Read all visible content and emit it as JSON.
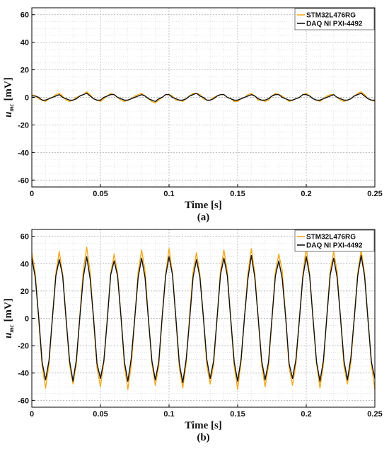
{
  "chart_data": [
    {
      "type": "line",
      "caption": "(a)",
      "xlabel": "Time [s]",
      "ylabel": "u",
      "ylabel_subscript": "mc",
      "ylabel_unit": "[mV]",
      "xlim": [
        0,
        0.25
      ],
      "ylim": [
        -65,
        65
      ],
      "xticks": [
        0,
        0.05,
        0.1,
        0.15,
        0.2,
        0.25
      ],
      "yticks": [
        -60,
        -40,
        -20,
        0,
        20,
        40,
        60
      ],
      "grid": true,
      "legend": "upper right",
      "x": [
        0,
        0.0025,
        0.005,
        0.0075,
        0.01,
        0.0125,
        0.015,
        0.0175,
        0.02,
        0.0225,
        0.025,
        0.0275,
        0.03,
        0.0325,
        0.035,
        0.0375,
        0.04,
        0.0425,
        0.045,
        0.0475,
        0.05,
        0.0525,
        0.055,
        0.0575,
        0.06,
        0.0625,
        0.065,
        0.0675,
        0.07,
        0.0725,
        0.075,
        0.0775,
        0.08,
        0.0825,
        0.085,
        0.0875,
        0.09,
        0.0925,
        0.095,
        0.0975,
        0.1,
        0.1025,
        0.105,
        0.1075,
        0.11,
        0.1125,
        0.115,
        0.1175,
        0.12,
        0.1225,
        0.125,
        0.1275,
        0.13,
        0.1325,
        0.135,
        0.1375,
        0.14,
        0.1425,
        0.145,
        0.1475,
        0.15,
        0.1525,
        0.155,
        0.1575,
        0.16,
        0.1625,
        0.165,
        0.1675,
        0.17,
        0.1725,
        0.175,
        0.1775,
        0.18,
        0.1825,
        0.185,
        0.1875,
        0.19,
        0.1925,
        0.195,
        0.1975,
        0.2,
        0.2025,
        0.205,
        0.2075,
        0.21,
        0.2125,
        0.215,
        0.2175,
        0.22,
        0.2225,
        0.225,
        0.2275,
        0.23,
        0.2325,
        0.235,
        0.2375,
        0.24,
        0.2425,
        0.245,
        0.2475,
        0.25
      ],
      "series": [
        {
          "name": "STM32L476RG",
          "color": "#f2a81d",
          "values": [
            2,
            1,
            -1,
            -2,
            -3,
            -1,
            0,
            2,
            3,
            1,
            -2,
            -3,
            -2,
            0,
            1,
            2,
            4,
            2,
            -1,
            -2,
            -3,
            -1,
            1,
            3,
            2,
            0,
            -2,
            -3,
            -2,
            -1,
            1,
            2,
            3,
            1,
            -1,
            -3,
            -4,
            -2,
            0,
            2,
            2,
            1,
            -2,
            -2,
            -3,
            -1,
            1,
            3,
            3,
            2,
            -1,
            -2,
            -2,
            0,
            1,
            2,
            2,
            0,
            -1,
            -3,
            -3,
            -1,
            0,
            2,
            3,
            1,
            -2,
            -2,
            -3,
            -2,
            1,
            3,
            2,
            1,
            -1,
            -3,
            -2,
            -1,
            0,
            2,
            3,
            1,
            -1,
            -2,
            -3,
            -1,
            1,
            2,
            2,
            0,
            -2,
            -3,
            -2,
            -1,
            1,
            3,
            4,
            2,
            -1,
            -2,
            -3
          ]
        },
        {
          "name": "DAQ NI PXI-4492",
          "color": "#111111",
          "values": [
            1,
            1,
            0,
            -2,
            -2,
            -1,
            0,
            1,
            2,
            0,
            -1,
            -2,
            -2,
            -1,
            1,
            2,
            3,
            1,
            -1,
            -2,
            -2,
            0,
            1,
            2,
            2,
            0,
            -1,
            -2,
            -2,
            -1,
            0,
            1,
            2,
            1,
            -1,
            -2,
            -3,
            -1,
            0,
            2,
            2,
            0,
            -1,
            -2,
            -2,
            -1,
            1,
            2,
            3,
            1,
            0,
            -2,
            -2,
            -1,
            1,
            2,
            2,
            0,
            -1,
            -2,
            -2,
            -1,
            0,
            1,
            2,
            1,
            -1,
            -2,
            -2,
            -1,
            1,
            2,
            2,
            0,
            -1,
            -2,
            -2,
            -1,
            0,
            2,
            2,
            1,
            -1,
            -2,
            -2,
            -1,
            0,
            1,
            2,
            0,
            -1,
            -2,
            -2,
            -1,
            1,
            2,
            3,
            1,
            -1,
            -2,
            -2
          ]
        }
      ]
    },
    {
      "type": "line",
      "caption": "(b)",
      "xlabel": "Time [s]",
      "ylabel": "u",
      "ylabel_subscript": "mc",
      "ylabel_unit": "[mV]",
      "xlim": [
        0,
        0.25
      ],
      "ylim": [
        -65,
        65
      ],
      "xticks": [
        0,
        0.05,
        0.1,
        0.15,
        0.2,
        0.25
      ],
      "yticks": [
        -60,
        -40,
        -20,
        0,
        20,
        40,
        60
      ],
      "grid": true,
      "legend": "upper right",
      "x": [
        0,
        0.0025,
        0.005,
        0.0075,
        0.01,
        0.0125,
        0.015,
        0.0175,
        0.02,
        0.0225,
        0.025,
        0.0275,
        0.03,
        0.0325,
        0.035,
        0.0375,
        0.04,
        0.0425,
        0.045,
        0.0475,
        0.05,
        0.0525,
        0.055,
        0.0575,
        0.06,
        0.0625,
        0.065,
        0.0675,
        0.07,
        0.0725,
        0.075,
        0.0775,
        0.08,
        0.0825,
        0.085,
        0.0875,
        0.09,
        0.0925,
        0.095,
        0.0975,
        0.1,
        0.1025,
        0.105,
        0.1075,
        0.11,
        0.1125,
        0.115,
        0.1175,
        0.12,
        0.1225,
        0.125,
        0.1275,
        0.13,
        0.1325,
        0.135,
        0.1375,
        0.14,
        0.1425,
        0.145,
        0.1475,
        0.15,
        0.1525,
        0.155,
        0.1575,
        0.16,
        0.1625,
        0.165,
        0.1675,
        0.17,
        0.1725,
        0.175,
        0.1775,
        0.18,
        0.1825,
        0.185,
        0.1875,
        0.19,
        0.1925,
        0.195,
        0.1975,
        0.2,
        0.2025,
        0.205,
        0.2075,
        0.21,
        0.2125,
        0.215,
        0.2175,
        0.22,
        0.2225,
        0.225,
        0.2275,
        0.23,
        0.2325,
        0.235,
        0.2375,
        0.24,
        0.2425,
        0.245,
        0.2475,
        0.25
      ],
      "series": [
        {
          "name": "STM32L476RG",
          "color": "#f2a81d",
          "values": [
            48,
            33,
            -1,
            -35,
            -51,
            -34,
            1,
            33,
            49,
            32,
            0,
            -34,
            -48,
            -33,
            2,
            35,
            52,
            34,
            -2,
            -36,
            -50,
            -32,
            0,
            33,
            47,
            33,
            1,
            -35,
            -52,
            -34,
            -1,
            34,
            50,
            35,
            0,
            -33,
            -49,
            -35,
            1,
            32,
            51,
            33,
            -1,
            -36,
            -51,
            -33,
            2,
            34,
            48,
            32,
            1,
            -34,
            -48,
            -34,
            0,
            35,
            50,
            34,
            -2,
            -35,
            -52,
            -32,
            1,
            33,
            51,
            33,
            0,
            -34,
            -50,
            -35,
            -1,
            34,
            47,
            35,
            1,
            -36,
            -49,
            -33,
            0,
            32,
            52,
            32,
            -1,
            -33,
            -51,
            -34,
            2,
            35,
            49,
            34,
            0,
            -35,
            -48,
            -33,
            1,
            33,
            50,
            33,
            -1,
            -34,
            -52
          ]
        },
        {
          "name": "DAQ NI PXI-4492",
          "color": "#111111",
          "values": [
            44,
            30,
            1,
            -32,
            -45,
            -31,
            0,
            31,
            43,
            31,
            -1,
            -31,
            -46,
            -30,
            1,
            30,
            45,
            29,
            0,
            -33,
            -44,
            -31,
            -1,
            32,
            42,
            31,
            1,
            -32,
            -46,
            -29,
            0,
            30,
            44,
            30,
            -1,
            -31,
            -45,
            -32,
            1,
            31,
            45,
            32,
            0,
            -33,
            -47,
            -30,
            -1,
            30,
            43,
            30,
            1,
            -30,
            -44,
            -31,
            0,
            32,
            44,
            31,
            -1,
            -32,
            -46,
            -30,
            1,
            29,
            46,
            30,
            0,
            -31,
            -45,
            -32,
            0,
            31,
            42,
            29,
            1,
            -33,
            -44,
            -30,
            -1,
            30,
            45,
            31,
            -1,
            -32,
            -46,
            -31,
            1,
            32,
            44,
            30,
            0,
            -31,
            -45,
            -29,
            0,
            31,
            46,
            31,
            -1,
            -32,
            -44
          ]
        }
      ]
    }
  ]
}
